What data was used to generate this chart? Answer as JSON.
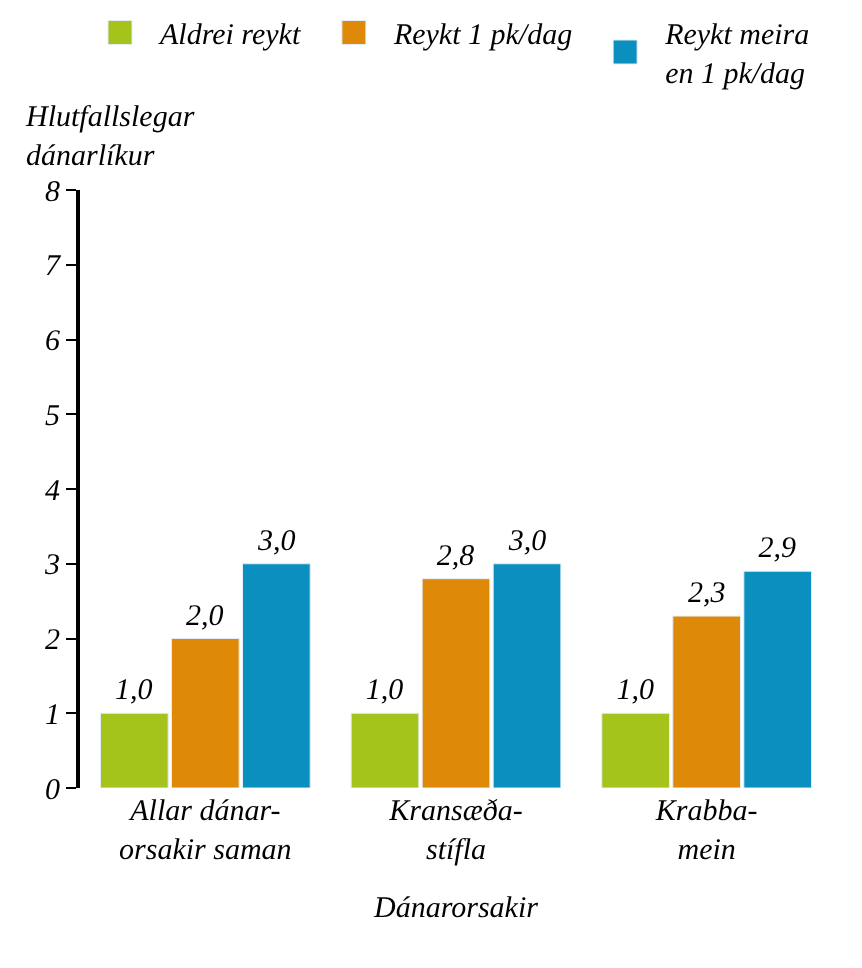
{
  "chart_data": {
    "type": "bar",
    "ylabel": "Hlutfallslegar\ndánarlíkur",
    "xlabel": "Dánarorsakir",
    "categories": [
      "Allar dánar-\norsakir saman",
      "Kransæða-\nstífla",
      "Krabba-\nmein"
    ],
    "series": [
      {
        "name": "Aldrei reykt",
        "color": "#a4c41c",
        "values": [
          1.0,
          1.0,
          1.0
        ],
        "value_labels": [
          "1,0",
          "1,0",
          "1,0"
        ]
      },
      {
        "name": "Reykt 1 pk/dag",
        "color": "#de8a08",
        "values": [
          2.0,
          2.8,
          2.3
        ],
        "value_labels": [
          "2,0",
          "2,8",
          "2,3"
        ]
      },
      {
        "name": "Reykt meira\nen 1 pk/dag",
        "color": "#0a8fbf",
        "values": [
          3.0,
          3.0,
          2.9
        ],
        "value_labels": [
          "3,0",
          "3,0",
          "2,9"
        ]
      }
    ],
    "ylim": [
      0,
      8
    ],
    "yticks": [
      0,
      1,
      2,
      3,
      4,
      5,
      6,
      7,
      8
    ],
    "legend": "top"
  }
}
